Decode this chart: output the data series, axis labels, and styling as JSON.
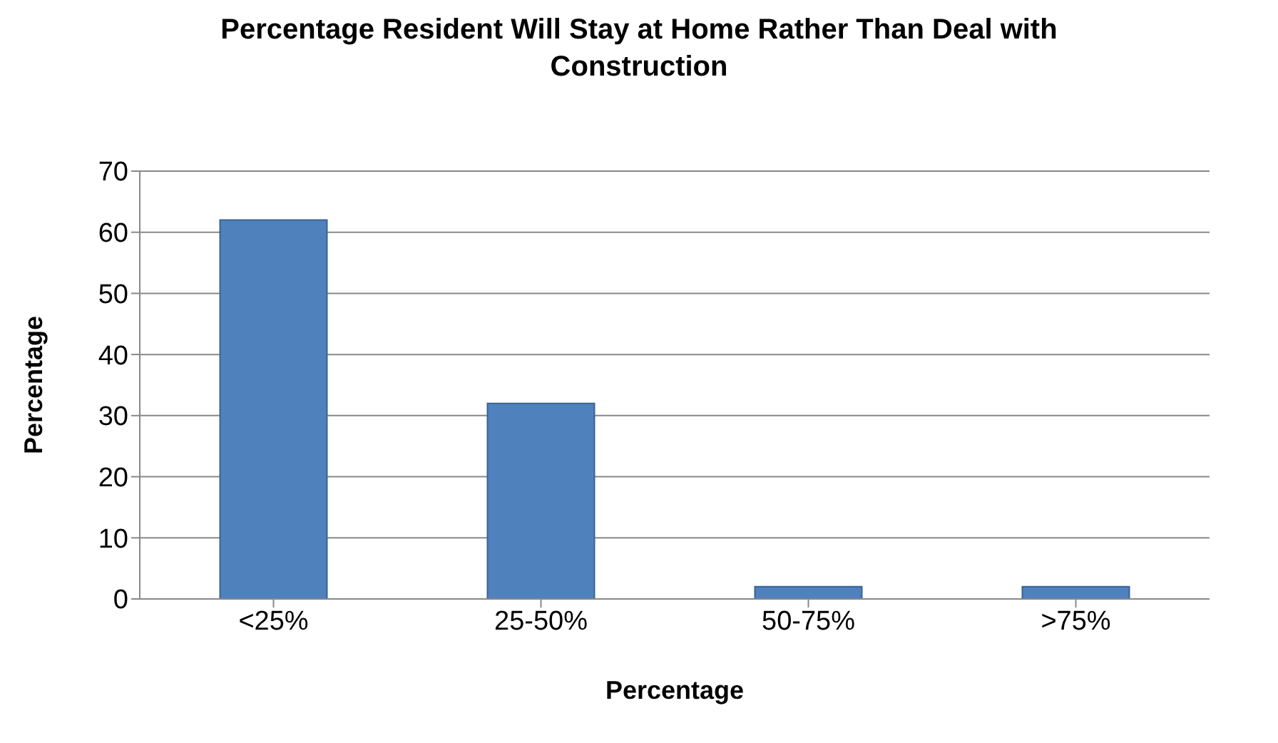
{
  "chart_data": {
    "type": "bar",
    "title": "Percentage Resident Will Stay at Home Rather Than Deal with Construction",
    "xlabel": "Percentage",
    "ylabel": "Percentage",
    "categories": [
      "<25%",
      "25-50%",
      "50-75%",
      ">75%"
    ],
    "values": [
      62,
      32,
      2,
      2
    ],
    "color": "#4f81bd",
    "ylim": [
      0,
      70
    ],
    "yticks": [
      0,
      10,
      20,
      30,
      40,
      50,
      60,
      70
    ],
    "grid": "y"
  }
}
